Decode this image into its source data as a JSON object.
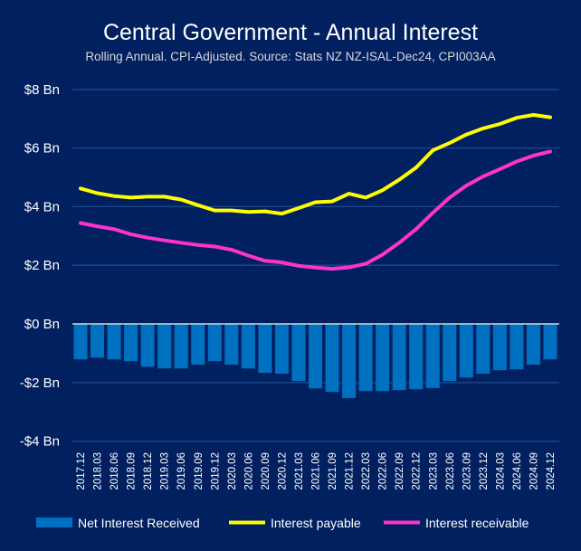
{
  "chart_data": {
    "type": "bar+line",
    "title": "Central Government - Annual Interest",
    "subtitle": "Rolling Annual. CPI-Adjusted. Source: Stats NZ NZ-ISAL-Dec24, CPI003AA",
    "xlabel": "",
    "ylabel": "",
    "ylim": [
      -4,
      8
    ],
    "yticks": [
      8,
      6,
      4,
      2,
      0,
      -2,
      -4
    ],
    "ytick_labels": [
      "$8 Bn",
      "$6 Bn",
      "$4 Bn",
      "$2 Bn",
      "$0 Bn",
      "-$2 Bn",
      "-$4 Bn"
    ],
    "grid": true,
    "legend_position": "bottom",
    "categories": [
      "2017.12",
      "2018.03",
      "2018.06",
      "2018.09",
      "2018.12",
      "2019.03",
      "2019.06",
      "2019.09",
      "2019.12",
      "2020.03",
      "2020.06",
      "2020.09",
      "2020.12",
      "2021.03",
      "2021.06",
      "2021.09",
      "2021.12",
      "2022.03",
      "2022.06",
      "2022.09",
      "2022.12",
      "2023.03",
      "2023.06",
      "2023.09",
      "2023.12",
      "2024.03",
      "2024.06",
      "2024.09",
      "2024.12"
    ],
    "series": [
      {
        "name": "Net Interest Received",
        "type": "bar",
        "color": "#0070C0",
        "values": [
          -1.21,
          -1.15,
          -1.21,
          -1.27,
          -1.46,
          -1.52,
          -1.52,
          -1.39,
          -1.27,
          -1.39,
          -1.52,
          -1.67,
          -1.7,
          -1.95,
          -2.2,
          -2.32,
          -2.53,
          -2.29,
          -2.29,
          -2.26,
          -2.23,
          -2.19,
          -1.95,
          -1.83,
          -1.7,
          -1.58,
          -1.55,
          -1.39,
          -1.21
        ]
      },
      {
        "name": "Interest payable",
        "type": "line",
        "color": "#FFFF00",
        "values": [
          4.62,
          4.46,
          4.36,
          4.31,
          4.34,
          4.34,
          4.24,
          4.05,
          3.87,
          3.87,
          3.82,
          3.84,
          3.76,
          3.95,
          4.15,
          4.18,
          4.44,
          4.31,
          4.56,
          4.92,
          5.33,
          5.92,
          6.17,
          6.46,
          6.67,
          6.82,
          7.03,
          7.13,
          7.05
        ]
      },
      {
        "name": "Interest receivable",
        "type": "line",
        "color": "#FF33CC",
        "values": [
          3.44,
          3.33,
          3.23,
          3.06,
          2.94,
          2.85,
          2.77,
          2.69,
          2.64,
          2.53,
          2.33,
          2.15,
          2.1,
          1.98,
          1.92,
          1.88,
          1.93,
          2.05,
          2.36,
          2.77,
          3.23,
          3.79,
          4.31,
          4.72,
          5.03,
          5.28,
          5.54,
          5.74,
          5.88
        ]
      }
    ]
  }
}
